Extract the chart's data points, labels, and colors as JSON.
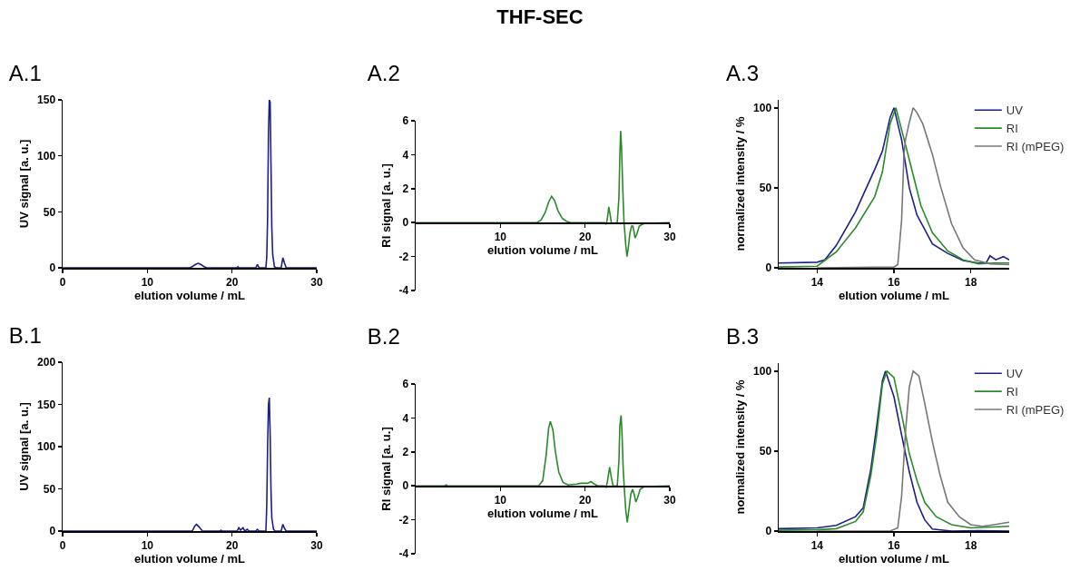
{
  "chart_data": [
    {
      "type": "line",
      "title": "A.1",
      "annotations": [
        "THF-SEC"
      ],
      "xlabel": "elution volume / mL",
      "ylabel": "UV signal [a. u.]",
      "xlim": [
        0,
        30
      ],
      "xticks": [
        0,
        10,
        20,
        30
      ],
      "ylim": [
        0,
        150
      ],
      "yticks": [
        0,
        50,
        100,
        150
      ],
      "series": [
        {
          "color": "#1c1f8a",
          "x": [
            0,
            15,
            15.3,
            15.7,
            16,
            16.3,
            16.7,
            17,
            20.6,
            20.7,
            20.8,
            22.8,
            23,
            23.2,
            24,
            24.1,
            24.2,
            24.3,
            24.4,
            24.5,
            24.6,
            24.7,
            24.8,
            25,
            25.2,
            25.8,
            26,
            26.2,
            26.4,
            30
          ],
          "values": [
            0,
            0,
            1,
            3,
            4,
            3,
            1,
            0,
            0,
            1,
            0,
            0,
            3,
            0,
            0,
            10,
            45,
            120,
            150,
            148,
            92,
            35,
            12,
            1,
            0,
            0,
            9,
            4,
            0,
            0
          ]
        }
      ]
    },
    {
      "type": "line",
      "title": "A.2",
      "xlabel": "elution volume / mL",
      "ylabel": "RI signal [a. u.]",
      "xlim": [
        0,
        30
      ],
      "xticks": [
        10,
        20,
        30
      ],
      "ylim": [
        -4,
        6
      ],
      "yticks": [
        -4,
        -2,
        0,
        2,
        4,
        6
      ],
      "series": [
        {
          "color": "#2a8a2a",
          "x": [
            0,
            14.3,
            14.8,
            15.3,
            15.7,
            16.05,
            16.4,
            16.8,
            17.3,
            17.8,
            18.3,
            22.3,
            22.5,
            22.65,
            22.8,
            22.95,
            23.1,
            23.3,
            23.8,
            24,
            24.1,
            24.2,
            24.3,
            24.45,
            24.6,
            24.8,
            24.95,
            25.1,
            25.3,
            25.5,
            25.65,
            25.8,
            25.9,
            26.1,
            26.4,
            27,
            30
          ],
          "values": [
            0,
            0,
            0.15,
            0.6,
            1.2,
            1.55,
            1.3,
            0.7,
            0.25,
            0.08,
            0,
            0,
            -0.1,
            0.3,
            0.93,
            0.5,
            0,
            -0.05,
            0,
            1.5,
            3.8,
            5.4,
            4.5,
            2,
            0,
            -1.3,
            -2,
            -1.5,
            -0.6,
            -0.2,
            -0.2,
            -0.6,
            -0.9,
            -0.7,
            -0.2,
            -0.05,
            0
          ]
        }
      ]
    },
    {
      "type": "line",
      "title": "A.3",
      "xlabel": "elution volume / mL",
      "ylabel": "normalized intensity / %",
      "xlim": [
        13,
        19
      ],
      "xticks": [
        14,
        16,
        18
      ],
      "ylim": [
        0,
        105
      ],
      "yticks": [
        0,
        50,
        100
      ],
      "legend": "top right",
      "series": [
        {
          "name": "UV",
          "color": "#1c1f8a",
          "x": [
            13,
            14,
            14.2,
            14.5,
            15,
            15.5,
            15.7,
            15.9,
            16,
            16.2,
            16.4,
            16.6,
            16.8,
            17,
            17.4,
            17.8,
            18.2,
            18.4,
            18.5,
            18.65,
            18.85,
            19
          ],
          "values": [
            3,
            3.5,
            5,
            14,
            35,
            61.5,
            73,
            94,
            100,
            80,
            50,
            33,
            24,
            15,
            9,
            4.5,
            3,
            3,
            7.5,
            5,
            7,
            5
          ]
        },
        {
          "name": "RI",
          "color": "#2a8a2a",
          "x": [
            13,
            14,
            14.5,
            15,
            15.5,
            15.7,
            15.9,
            16.05,
            16.3,
            16.5,
            16.7,
            17,
            17.4,
            17.8,
            18.2,
            18.6,
            19
          ],
          "values": [
            0.5,
            1,
            10,
            25,
            44.5,
            60,
            90,
            100,
            77,
            58,
            39,
            22,
            10.5,
            5,
            2.5,
            3,
            3
          ]
        },
        {
          "name": "RI (mPEG)",
          "color": "#777777",
          "x": [
            14,
            16,
            16.1,
            16.2,
            16.26,
            16.3,
            16.4,
            16.5,
            16.6,
            16.75,
            17,
            17.2,
            17.5,
            17.8,
            18.1,
            18.5,
            19
          ],
          "values": [
            0,
            0.5,
            2,
            30,
            71,
            80,
            91,
            100,
            97,
            90,
            71,
            52,
            27.5,
            12.5,
            5,
            2.5,
            2
          ]
        }
      ]
    },
    {
      "type": "line",
      "title": "B.1",
      "xlabel": "elution volume / mL",
      "ylabel": "UV signal [a. u.]",
      "xlim": [
        0,
        30
      ],
      "xticks": [
        0,
        10,
        20,
        30
      ],
      "ylim": [
        0,
        200
      ],
      "yticks": [
        0,
        50,
        100,
        150,
        200
      ],
      "series": [
        {
          "color": "#1c1f8a",
          "x": [
            0,
            15.3,
            15.6,
            15.8,
            16.1,
            16.5,
            18.6,
            18.7,
            18.8,
            20.6,
            20.8,
            21,
            21.3,
            21.5,
            21.8,
            22,
            22.8,
            23,
            23.2,
            24,
            24.1,
            24.2,
            24.3,
            24.4,
            24.5,
            24.6,
            24.7,
            24.9,
            25.1,
            25.8,
            26,
            26.2,
            26.4,
            30
          ],
          "values": [
            0,
            0,
            6,
            8,
            5,
            0,
            0,
            1,
            0,
            0,
            4,
            1,
            4,
            0,
            2,
            0,
            0,
            2,
            0,
            0,
            30,
            100,
            150,
            158,
            115,
            48,
            15,
            2,
            0,
            0,
            8,
            3,
            0,
            0
          ]
        }
      ]
    },
    {
      "type": "line",
      "title": "B.2",
      "xlabel": "elution volume / mL",
      "ylabel": "RI signal [a. u.]",
      "xlim": [
        0,
        30
      ],
      "xticks": [
        10,
        20,
        30
      ],
      "ylim": [
        -4,
        6
      ],
      "yticks": [
        -4,
        -2,
        0,
        2,
        4,
        6
      ],
      "series": [
        {
          "color": "#2a8a2a",
          "x": [
            0,
            3.4,
            3.6,
            3.8,
            14.5,
            15,
            15.4,
            15.7,
            15.9,
            16.2,
            16.5,
            16.9,
            17.4,
            18,
            19,
            19.5,
            20.3,
            20.7,
            21.1,
            21.5,
            22.3,
            22.5,
            22.65,
            22.9,
            23.1,
            23.3,
            23.8,
            24,
            24.1,
            24.25,
            24.35,
            24.5,
            24.65,
            24.8,
            24.98,
            25.15,
            25.4,
            25.6,
            25.8,
            26,
            26.2,
            26.5,
            27,
            30
          ],
          "values": [
            0,
            0,
            0.05,
            0,
            0,
            0.3,
            1.8,
            3.4,
            3.8,
            3.3,
            2,
            0.8,
            0.2,
            0.05,
            0.1,
            0.15,
            0.15,
            0.25,
            0.1,
            0,
            0,
            -0.1,
            0.3,
            1.1,
            0.5,
            0,
            0,
            1.5,
            3.5,
            4.15,
            3.2,
            1,
            -0.3,
            -1.4,
            -2.15,
            -1.5,
            -0.5,
            -0.2,
            -0.5,
            -0.95,
            -0.7,
            -0.2,
            -0.05,
            0
          ]
        }
      ]
    },
    {
      "type": "line",
      "title": "B.3",
      "xlabel": "elution volume / mL",
      "ylabel": "normalized intensity / %",
      "xlim": [
        13,
        19
      ],
      "xticks": [
        14,
        16,
        18
      ],
      "ylim": [
        0,
        105
      ],
      "yticks": [
        0,
        50,
        100
      ],
      "legend": "top right",
      "series": [
        {
          "name": "UV",
          "color": "#1c1f8a",
          "x": [
            13,
            14,
            14.5,
            15,
            15.2,
            15.4,
            15.55,
            15.7,
            15.78,
            16,
            16.2,
            16.4,
            16.6,
            16.8,
            17,
            17.5,
            18.2,
            19
          ],
          "values": [
            1.5,
            2,
            3.5,
            9,
            14.5,
            39,
            65.5,
            94,
            100,
            84,
            60,
            37,
            18,
            7,
            1.3,
            0,
            0.3,
            0
          ]
        },
        {
          "name": "RI",
          "color": "#2a8a2a",
          "x": [
            13,
            14,
            14.5,
            15,
            15.2,
            15.4,
            15.55,
            15.7,
            15.82,
            16,
            16.2,
            16.4,
            16.6,
            16.8,
            17.1,
            17.5,
            18,
            19
          ],
          "values": [
            0.5,
            0.8,
            1.5,
            6,
            12,
            35,
            60,
            92,
            100,
            96,
            73,
            48.5,
            31.5,
            18,
            9,
            4,
            2,
            3
          ]
        },
        {
          "name": "RI (mPEG)",
          "color": "#777777",
          "x": [
            14,
            15.9,
            16.1,
            16.2,
            16.3,
            16.4,
            16.5,
            16.65,
            16.8,
            17,
            17.2,
            17.4,
            17.7,
            18,
            18.3,
            18.6,
            19
          ],
          "values": [
            0,
            0,
            2,
            22,
            62,
            90,
            100,
            97,
            80,
            56,
            35,
            18,
            9,
            4,
            3,
            4,
            5.5
          ]
        }
      ]
    }
  ]
}
